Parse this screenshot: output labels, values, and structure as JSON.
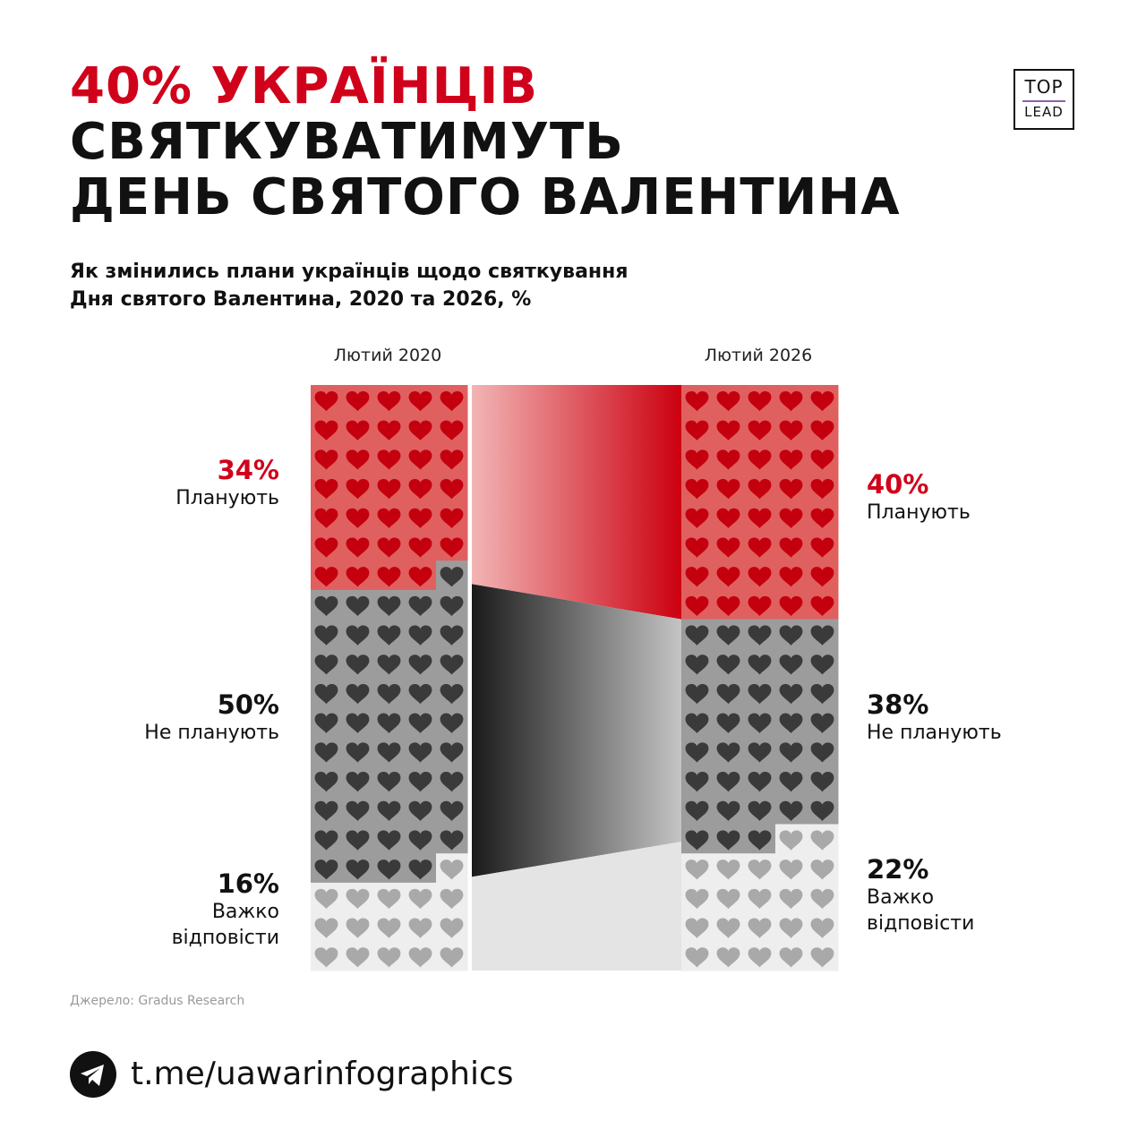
{
  "title": {
    "line1": "40% УКРАЇНЦІВ",
    "line2": "СВЯТКУВАТИМУТЬ",
    "line3": "ДЕНЬ СВЯТОГО ВАЛЕНТИНА"
  },
  "subtitle": {
    "line1": "Як змінились плани українців щодо святкування",
    "line2": "Дня святого Валентина, 2020 та 2026, %"
  },
  "logo": {
    "line1": "TOP",
    "line2": "LEAD"
  },
  "colors": {
    "accent": "#d0021b",
    "plan_fill": "#e06060",
    "noplan_fill": "#9c9c9c",
    "hard_fill": "#eeeeee",
    "heart_red": "#c4000f",
    "heart_dark": "#3a3a3a",
    "heart_light": "#a9a9a9"
  },
  "source": "Джерело: Gradus Research",
  "telegram": {
    "icon": "telegram-icon",
    "link": "t.me/uawarinfographics"
  },
  "chart_data": {
    "type": "waffle",
    "unit": "%",
    "periods": [
      "Лютий 2020",
      "Лютий 2026"
    ],
    "series": [
      {
        "name": "Планують",
        "values": [
          34,
          40
        ],
        "color": "red"
      },
      {
        "name": "Не планують",
        "values": [
          50,
          38
        ],
        "color": "gray"
      },
      {
        "name": "Важко відповісти",
        "values": [
          16,
          22
        ],
        "color": "light"
      }
    ],
    "left_labels": [
      {
        "pct": "34%",
        "line1": "Планують",
        "line2": ""
      },
      {
        "pct": "50%",
        "line1": "Не планують",
        "line2": ""
      },
      {
        "pct": "16%",
        "line1": "Важко",
        "line2": "відповісти"
      }
    ],
    "right_labels": [
      {
        "pct": "40%",
        "line1": "Планують",
        "line2": ""
      },
      {
        "pct": "38%",
        "line1": "Не планують",
        "line2": ""
      },
      {
        "pct": "22%",
        "line1": "Важко",
        "line2": "відповісти"
      }
    ]
  }
}
